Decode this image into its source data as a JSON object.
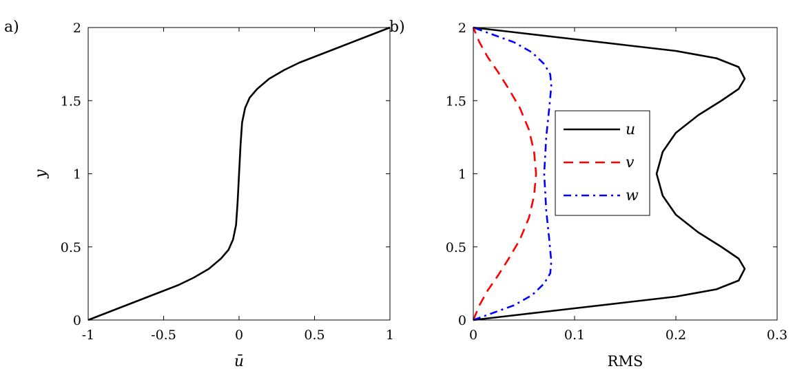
{
  "chart_data": [
    {
      "type": "line",
      "panel_label": "a)",
      "xlabel": "ū",
      "ylabel": "y",
      "xlim": [
        -1,
        1
      ],
      "ylim": [
        0,
        2
      ],
      "xticks": [
        -1,
        -0.5,
        0,
        0.5,
        1
      ],
      "xtick_labels": [
        "-1",
        "-0.5",
        "0",
        "0.5",
        "1"
      ],
      "yticks": [
        0,
        0.5,
        1,
        1.5,
        2
      ],
      "ytick_labels": [
        "0",
        "0.5",
        "1",
        "1.5",
        "2"
      ],
      "grid": false,
      "series": [
        {
          "color": "#000000",
          "style": "solid",
          "points": [
            [
              -1.0,
              0.0
            ],
            [
              -0.85,
              0.06
            ],
            [
              -0.7,
              0.12
            ],
            [
              -0.55,
              0.18
            ],
            [
              -0.4,
              0.24
            ],
            [
              -0.3,
              0.29
            ],
            [
              -0.2,
              0.35
            ],
            [
              -0.12,
              0.42
            ],
            [
              -0.07,
              0.48
            ],
            [
              -0.04,
              0.55
            ],
            [
              -0.02,
              0.65
            ],
            [
              -0.01,
              0.8
            ],
            [
              0.0,
              1.0
            ],
            [
              0.01,
              1.2
            ],
            [
              0.02,
              1.35
            ],
            [
              0.04,
              1.45
            ],
            [
              0.07,
              1.52
            ],
            [
              0.12,
              1.58
            ],
            [
              0.2,
              1.65
            ],
            [
              0.3,
              1.71
            ],
            [
              0.4,
              1.76
            ],
            [
              0.55,
              1.82
            ],
            [
              0.7,
              1.88
            ],
            [
              0.85,
              1.94
            ],
            [
              1.0,
              2.0
            ]
          ]
        }
      ]
    },
    {
      "type": "line",
      "panel_label": "b)",
      "xlabel": "RMS",
      "ylabel": "",
      "xlim": [
        0,
        0.3
      ],
      "ylim": [
        0,
        2
      ],
      "xticks": [
        0,
        0.1,
        0.2,
        0.3
      ],
      "xtick_labels": [
        "0",
        "0.1",
        "0.2",
        "0.3"
      ],
      "yticks": [
        0,
        0.5,
        1,
        1.5,
        2
      ],
      "ytick_labels": [
        "0",
        "0.5",
        "1",
        "1.5",
        "2"
      ],
      "grid": false,
      "legend": {
        "placement": "center"
      },
      "series": [
        {
          "name": "u",
          "color": "#000000",
          "style": "solid",
          "points": [
            [
              0.0,
              0.0
            ],
            [
              0.05,
              0.04
            ],
            [
              0.1,
              0.08
            ],
            [
              0.15,
              0.12
            ],
            [
              0.2,
              0.16
            ],
            [
              0.24,
              0.21
            ],
            [
              0.262,
              0.27
            ],
            [
              0.268,
              0.35
            ],
            [
              0.262,
              0.42
            ],
            [
              0.245,
              0.5
            ],
            [
              0.222,
              0.6
            ],
            [
              0.2,
              0.72
            ],
            [
              0.187,
              0.85
            ],
            [
              0.181,
              1.0
            ],
            [
              0.187,
              1.15
            ],
            [
              0.2,
              1.28
            ],
            [
              0.222,
              1.4
            ],
            [
              0.245,
              1.5
            ],
            [
              0.262,
              1.58
            ],
            [
              0.268,
              1.65
            ],
            [
              0.262,
              1.73
            ],
            [
              0.24,
              1.79
            ],
            [
              0.2,
              1.84
            ],
            [
              0.15,
              1.88
            ],
            [
              0.1,
              1.92
            ],
            [
              0.05,
              1.96
            ],
            [
              0.0,
              2.0
            ]
          ]
        },
        {
          "name": "v",
          "color": "#ff0000",
          "style": "dashed",
          "points": [
            [
              0.0,
              0.0
            ],
            [
              0.006,
              0.1
            ],
            [
              0.014,
              0.2
            ],
            [
              0.024,
              0.3
            ],
            [
              0.035,
              0.42
            ],
            [
              0.046,
              0.55
            ],
            [
              0.055,
              0.7
            ],
            [
              0.06,
              0.85
            ],
            [
              0.062,
              1.0
            ],
            [
              0.06,
              1.15
            ],
            [
              0.055,
              1.3
            ],
            [
              0.046,
              1.45
            ],
            [
              0.035,
              1.58
            ],
            [
              0.024,
              1.7
            ],
            [
              0.014,
              1.8
            ],
            [
              0.006,
              1.9
            ],
            [
              0.0,
              2.0
            ]
          ]
        },
        {
          "name": "w",
          "color": "#0000ff",
          "style": "dashdot",
          "points": [
            [
              0.0,
              0.0
            ],
            [
              0.02,
              0.05
            ],
            [
              0.04,
              0.1
            ],
            [
              0.058,
              0.17
            ],
            [
              0.07,
              0.25
            ],
            [
              0.076,
              0.32
            ],
            [
              0.077,
              0.4
            ],
            [
              0.075,
              0.55
            ],
            [
              0.072,
              0.75
            ],
            [
              0.07,
              1.0
            ],
            [
              0.072,
              1.25
            ],
            [
              0.075,
              1.45
            ],
            [
              0.077,
              1.6
            ],
            [
              0.076,
              1.68
            ],
            [
              0.07,
              1.75
            ],
            [
              0.058,
              1.83
            ],
            [
              0.04,
              1.9
            ],
            [
              0.02,
              1.95
            ],
            [
              0.0,
              2.0
            ]
          ]
        }
      ]
    }
  ]
}
